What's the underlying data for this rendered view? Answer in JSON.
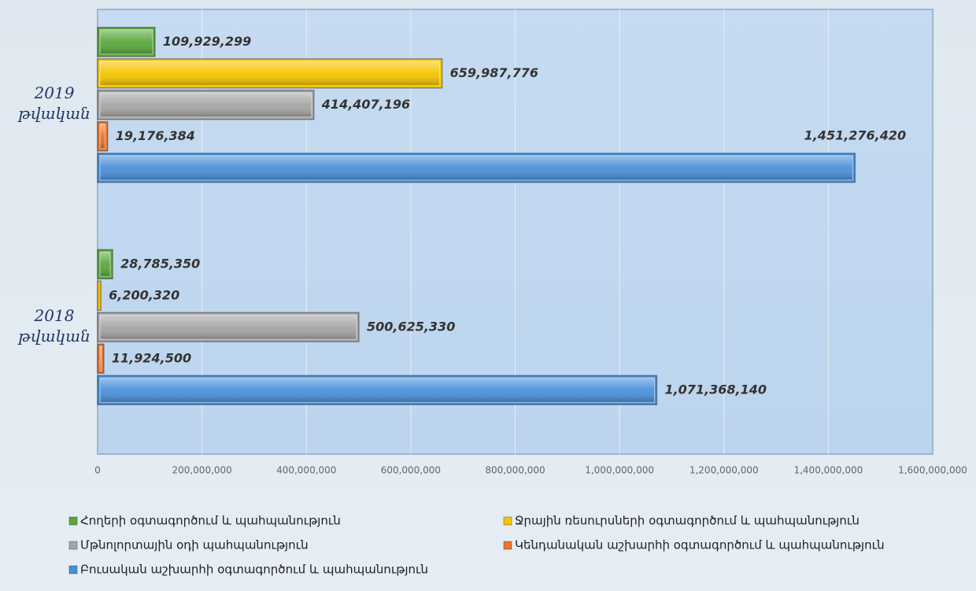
{
  "chart_data": {
    "type": "barh",
    "categories": [
      "2019 թվական",
      "2018 թվական"
    ],
    "series": [
      {
        "name": "Հողերի օգտագործում և պահպանություն",
        "color": "#5aa83c",
        "values": [
          109929299,
          28785350
        ],
        "value_labels": [
          "109,929,299",
          "28,785,350"
        ]
      },
      {
        "name": "Ջրային ռեսուրսների օգտագործում և պահպանություն",
        "color": "#f5c400",
        "values": [
          659987776,
          6200320
        ],
        "value_labels": [
          "659,987,776",
          "6,200,320"
        ]
      },
      {
        "name": "Մթնոլորտային օդի պահպանություն",
        "color": "#a6a6a6",
        "values": [
          414407196,
          500625330
        ],
        "value_labels": [
          "414,407,196",
          "500,625,330"
        ]
      },
      {
        "name": "Կենդանական աշխարհի օգտագործում և պահպանություն",
        "color": "#e8762d",
        "values": [
          19176384,
          11924500
        ],
        "value_labels": [
          "19,176,384",
          "11,924,500"
        ]
      },
      {
        "name": "Բուսական աշխարհի օգտագործում և պահպանություն",
        "color": "#4a90d9",
        "values": [
          1451276420,
          1071368140
        ],
        "value_labels": [
          "1,451,276,420",
          "1,071,368,140"
        ]
      }
    ],
    "xlim": [
      0,
      1600000000
    ],
    "xticks": [
      0,
      {
        "value": 200000000,
        "label": "200,000,000"
      },
      {
        "value": 400000000,
        "label": "400,000,000"
      },
      {
        "value": 600000000,
        "label": "600,000,000"
      },
      {
        "value": 800000000,
        "label": "800,000,000"
      },
      {
        "value": 1000000000,
        "label": "1,000,000,000"
      },
      {
        "value": 1200000000,
        "label": "1,200,000,000"
      },
      {
        "value": 1400000000,
        "label": "1,400,000,000"
      },
      {
        "value": 1600000000,
        "label": "1,600,000,000"
      }
    ],
    "grid": true,
    "legend": "bottom"
  }
}
